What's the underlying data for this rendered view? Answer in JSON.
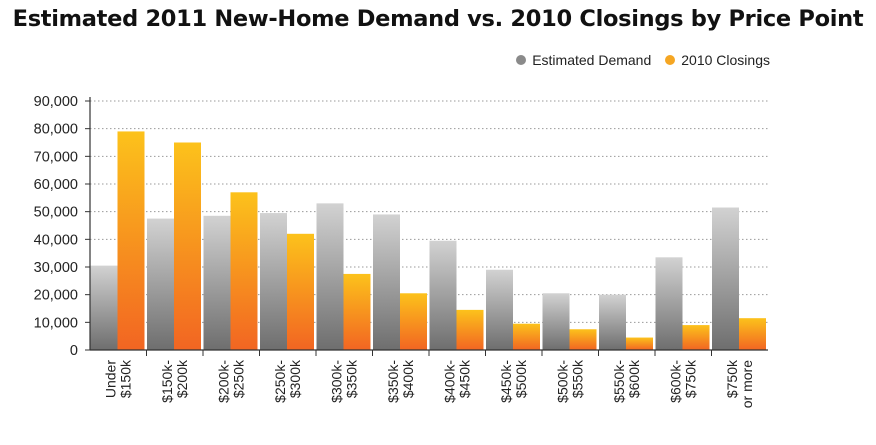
{
  "chart_data": {
    "type": "bar",
    "title": "Estimated 2011 New-Home Demand vs. 2010 Closings by Price Point",
    "xlabel": "",
    "ylabel": "",
    "ylim": [
      0,
      90000
    ],
    "yticks": [
      0,
      10000,
      20000,
      30000,
      40000,
      50000,
      60000,
      70000,
      80000,
      90000
    ],
    "ytick_labels": [
      "0",
      "10,000",
      "20,000",
      "30,000",
      "40,000",
      "50,000",
      "60,000",
      "70,000",
      "80,000",
      "90,000"
    ],
    "grid": true,
    "legend_position": "top-right",
    "categories": [
      [
        "Under",
        "$150k"
      ],
      [
        "$150k-",
        "$200k"
      ],
      [
        "$200k-",
        "$250k"
      ],
      [
        "$250k-",
        "$300k"
      ],
      [
        "$300k-",
        "$350k"
      ],
      [
        "$350k-",
        "$400k"
      ],
      [
        "$400k-",
        "$450k"
      ],
      [
        "$450k-",
        "$500k"
      ],
      [
        "$500k-",
        "$550k"
      ],
      [
        "$550k-",
        "$600k"
      ],
      [
        "$600k-",
        "$750k"
      ],
      [
        "$750k",
        "or more"
      ]
    ],
    "series": [
      {
        "name": "Estimated Demand",
        "color": "#8a8a8a",
        "values": [
          30500,
          47500,
          48500,
          49500,
          53000,
          49000,
          39500,
          29000,
          20500,
          20000,
          33500,
          51500
        ]
      },
      {
        "name": "2010 Closings",
        "color": "#f5a623",
        "values": [
          79000,
          75000,
          57000,
          42000,
          27500,
          20500,
          14500,
          9500,
          7500,
          4500,
          9000,
          11500
        ]
      }
    ]
  }
}
